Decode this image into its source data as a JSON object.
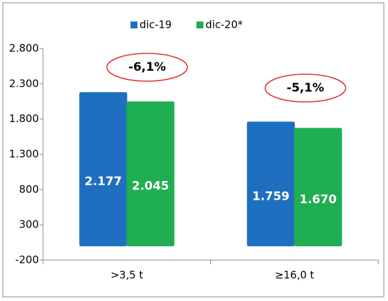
{
  "chart_data": {
    "type": "bar",
    "categories": [
      ">3,5 t",
      "≥16,0 t"
    ],
    "series": [
      {
        "name": "dic-19",
        "color": "#1f6fc0",
        "values": [
          2177,
          1759
        ],
        "value_labels": [
          "2.177",
          "1.759"
        ]
      },
      {
        "name": "dic-20*",
        "color": "#1fae52",
        "values": [
          2045,
          1670
        ],
        "value_labels": [
          "2.045",
          "1.670"
        ]
      }
    ],
    "ylim": [
      -200,
      2800
    ],
    "yticks": [
      -200,
      300,
      800,
      {
        "value": 1300,
        "label": "1.300"
      },
      {
        "value": 1800,
        "label": "1.800"
      },
      {
        "value": 2300,
        "label": "2.300"
      },
      {
        "value": 2800,
        "label": "2.800"
      }
    ],
    "annotations": [
      "-6,1%",
      "-5,1%"
    ]
  }
}
